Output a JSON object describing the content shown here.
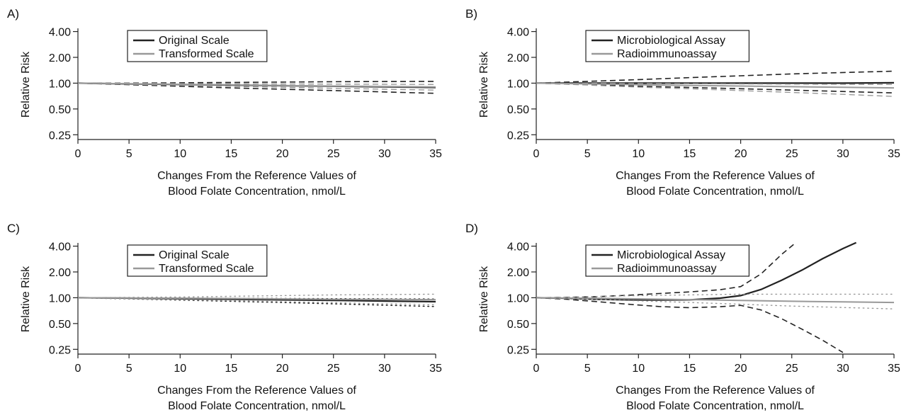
{
  "chart_data": [
    {
      "panel": "A)",
      "type": "line",
      "ylabel": "Relative Risk",
      "xlabel_lines": [
        "Changes From the Reference Values of",
        "Blood Folate Concentration, nmol/L"
      ],
      "xticks": [
        0,
        5,
        10,
        15,
        20,
        25,
        30,
        35
      ],
      "yticks": [
        0.25,
        0.5,
        1.0,
        2.0,
        4.0
      ],
      "ytick_labels": [
        "0.25",
        "0.50",
        "1.00",
        "2.00",
        "4.00"
      ],
      "xlim": [
        0,
        35
      ],
      "ylim": [
        0.22,
        4.2
      ],
      "yscale": "log",
      "legend": [
        {
          "label": "Original Scale",
          "color": "#222222"
        },
        {
          "label": "Transformed Scale",
          "color": "#999999"
        }
      ],
      "series": [
        {
          "name": "Original Scale",
          "color": "#222222",
          "dash": "solid",
          "width": 2.2,
          "x": [
            0,
            5,
            10,
            15,
            20,
            25,
            30,
            35
          ],
          "y": [
            1.0,
            0.98,
            0.965,
            0.95,
            0.935,
            0.92,
            0.905,
            0.89
          ]
        },
        {
          "color": "#222222",
          "dash": "dashed",
          "width": 1.6,
          "x": [
            0,
            5,
            10,
            15,
            20,
            25,
            30,
            35
          ],
          "y": [
            1.0,
            1.0,
            1.01,
            1.02,
            1.03,
            1.04,
            1.045,
            1.05
          ]
        },
        {
          "color": "#222222",
          "dash": "dashed",
          "width": 1.6,
          "x": [
            0,
            5,
            10,
            15,
            20,
            25,
            30,
            35
          ],
          "y": [
            1.0,
            0.96,
            0.92,
            0.88,
            0.85,
            0.82,
            0.79,
            0.76
          ]
        },
        {
          "name": "Transformed Scale",
          "color": "#999999",
          "dash": "solid",
          "width": 2.0,
          "x": [
            0,
            5,
            10,
            15,
            20,
            25,
            30,
            35
          ],
          "y": [
            1.0,
            0.985,
            0.97,
            0.955,
            0.94,
            0.925,
            0.915,
            0.905
          ]
        },
        {
          "color": "#999999",
          "dash": "dashed",
          "width": 1.4,
          "x": [
            0,
            5,
            10,
            15,
            20,
            25,
            30,
            35
          ],
          "y": [
            1.0,
            0.995,
            0.99,
            0.985,
            0.98,
            0.975,
            0.97,
            0.965
          ]
        },
        {
          "color": "#999999",
          "dash": "dashed",
          "width": 1.4,
          "x": [
            0,
            5,
            10,
            15,
            20,
            25,
            30,
            35
          ],
          "y": [
            1.0,
            0.97,
            0.945,
            0.92,
            0.895,
            0.87,
            0.85,
            0.83
          ]
        }
      ]
    },
    {
      "panel": "B)",
      "type": "line",
      "ylabel": "Relative Risk",
      "xlabel_lines": [
        "Changes From the Reference Values of",
        "Blood Folate Concentration, nmol/L"
      ],
      "xticks": [
        0,
        5,
        10,
        15,
        20,
        25,
        30,
        35
      ],
      "yticks": [
        0.25,
        0.5,
        1.0,
        2.0,
        4.0
      ],
      "ytick_labels": [
        "0.25",
        "0.50",
        "1.00",
        "2.00",
        "4.00"
      ],
      "xlim": [
        0,
        35
      ],
      "ylim": [
        0.22,
        4.2
      ],
      "yscale": "log",
      "legend": [
        {
          "label": "Microbiological Assay",
          "color": "#222222"
        },
        {
          "label": "Radioimmunoassay",
          "color": "#999999"
        }
      ],
      "series": [
        {
          "name": "Microbiological Assay",
          "color": "#222222",
          "dash": "solid",
          "width": 2.2,
          "x": [
            0,
            5,
            10,
            15,
            20,
            25,
            30,
            35
          ],
          "y": [
            1.0,
            1.0,
            1.0,
            1.0,
            1.0,
            1.0,
            1.0,
            1.01
          ]
        },
        {
          "color": "#222222",
          "dash": "dashed",
          "width": 1.6,
          "x": [
            0,
            5,
            10,
            15,
            20,
            25,
            30,
            35
          ],
          "y": [
            1.0,
            1.05,
            1.1,
            1.16,
            1.22,
            1.28,
            1.33,
            1.38
          ]
        },
        {
          "color": "#222222",
          "dash": "dashed",
          "width": 1.6,
          "x": [
            0,
            5,
            10,
            15,
            20,
            25,
            30,
            35
          ],
          "y": [
            1.0,
            0.96,
            0.92,
            0.89,
            0.86,
            0.83,
            0.8,
            0.77
          ]
        },
        {
          "name": "Radioimmunoassay",
          "color": "#999999",
          "dash": "solid",
          "width": 2.0,
          "x": [
            0,
            5,
            10,
            15,
            20,
            25,
            30,
            35
          ],
          "y": [
            1.0,
            0.98,
            0.96,
            0.94,
            0.925,
            0.91,
            0.895,
            0.88
          ]
        },
        {
          "color": "#999999",
          "dash": "dashed",
          "width": 1.4,
          "x": [
            0,
            5,
            10,
            15,
            20,
            25,
            30,
            35
          ],
          "y": [
            1.0,
            0.995,
            0.99,
            0.985,
            0.98,
            0.975,
            0.97,
            0.965
          ]
        },
        {
          "color": "#999999",
          "dash": "dashed",
          "width": 1.4,
          "x": [
            0,
            5,
            10,
            15,
            20,
            25,
            30,
            35
          ],
          "y": [
            1.0,
            0.95,
            0.9,
            0.86,
            0.82,
            0.78,
            0.74,
            0.7
          ]
        }
      ]
    },
    {
      "panel": "C)",
      "type": "line",
      "ylabel": "Relative Risk",
      "xlabel_lines": [
        "Changes From the Reference Values of",
        "Blood Folate Concentration, nmol/L"
      ],
      "xticks": [
        0,
        5,
        10,
        15,
        20,
        25,
        30,
        35
      ],
      "yticks": [
        0.25,
        0.5,
        1.0,
        2.0,
        4.0
      ],
      "ytick_labels": [
        "0.25",
        "0.50",
        "1.00",
        "2.00",
        "4.00"
      ],
      "xlim": [
        0,
        35
      ],
      "ylim": [
        0.22,
        4.2
      ],
      "yscale": "log",
      "legend": [
        {
          "label": "Original Scale",
          "color": "#222222"
        },
        {
          "label": "Transformed Scale",
          "color": "#999999"
        }
      ],
      "series": [
        {
          "name": "Original Scale",
          "color": "#222222",
          "dash": "solid",
          "width": 2.2,
          "x": [
            0,
            5,
            10,
            15,
            20,
            25,
            30,
            35
          ],
          "y": [
            1.0,
            0.99,
            0.975,
            0.96,
            0.945,
            0.93,
            0.915,
            0.9
          ]
        },
        {
          "color": "#222222",
          "dash": "dotted",
          "width": 1.6,
          "x": [
            0,
            5,
            10,
            15,
            20,
            25,
            30,
            35
          ],
          "y": [
            1.0,
            0.995,
            0.99,
            0.985,
            0.98,
            0.975,
            0.97,
            0.965
          ]
        },
        {
          "color": "#222222",
          "dash": "dotted",
          "width": 1.6,
          "x": [
            0,
            5,
            10,
            15,
            20,
            25,
            30,
            35
          ],
          "y": [
            1.0,
            0.97,
            0.94,
            0.91,
            0.88,
            0.85,
            0.82,
            0.79
          ]
        },
        {
          "name": "Transformed Scale",
          "color": "#999999",
          "dash": "solid",
          "width": 2.0,
          "x": [
            0,
            5,
            10,
            15,
            20,
            25,
            30,
            35
          ],
          "y": [
            1.0,
            0.995,
            0.99,
            0.98,
            0.97,
            0.96,
            0.955,
            0.95
          ]
        },
        {
          "color": "#999999",
          "dash": "dotted",
          "width": 1.4,
          "x": [
            0,
            5,
            10,
            15,
            20,
            25,
            30,
            35
          ],
          "y": [
            1.0,
            1.01,
            1.02,
            1.04,
            1.06,
            1.08,
            1.09,
            1.1
          ]
        },
        {
          "color": "#999999",
          "dash": "dotted",
          "width": 1.4,
          "x": [
            0,
            5,
            10,
            15,
            20,
            25,
            30,
            35
          ],
          "y": [
            1.0,
            0.975,
            0.95,
            0.925,
            0.9,
            0.875,
            0.85,
            0.83
          ]
        }
      ]
    },
    {
      "panel": "D)",
      "type": "line",
      "ylabel": "Relative Risk",
      "xlabel_lines": [
        "Changes From the Reference Values of",
        "Blood Folate Concentration, nmol/L"
      ],
      "xticks": [
        0,
        5,
        10,
        15,
        20,
        25,
        30,
        35
      ],
      "yticks": [
        0.25,
        0.5,
        1.0,
        2.0,
        4.0
      ],
      "ytick_labels": [
        "0.25",
        "0.50",
        "1.00",
        "2.00",
        "4.00"
      ],
      "xlim": [
        0,
        35
      ],
      "ylim": [
        0.22,
        4.2
      ],
      "yscale": "log",
      "legend": [
        {
          "label": "Microbiological Assay",
          "color": "#222222"
        },
        {
          "label": "Radioimmunoassay",
          "color": "#999999"
        }
      ],
      "series": [
        {
          "name": "Microbiological Assay",
          "color": "#222222",
          "dash": "solid",
          "width": 2.2,
          "x": [
            0,
            3,
            6,
            9,
            12,
            15,
            18,
            20,
            22,
            24,
            26,
            28,
            30,
            31.3
          ],
          "y": [
            1.0,
            0.985,
            0.96,
            0.945,
            0.94,
            0.945,
            0.99,
            1.06,
            1.25,
            1.6,
            2.1,
            2.85,
            3.75,
            4.4
          ]
        },
        {
          "color": "#222222",
          "dash": "dashed",
          "width": 1.6,
          "x": [
            0,
            3,
            6,
            9,
            12,
            15,
            18,
            20,
            22,
            24,
            25.3
          ],
          "y": [
            1.0,
            1.01,
            1.03,
            1.07,
            1.12,
            1.17,
            1.24,
            1.35,
            1.9,
            3.2,
            4.3
          ]
        },
        {
          "color": "#222222",
          "dash": "dashed",
          "width": 1.6,
          "x": [
            0,
            3,
            6,
            9,
            12,
            15,
            18,
            20,
            22,
            24,
            26,
            28,
            30
          ],
          "y": [
            1.0,
            0.96,
            0.9,
            0.84,
            0.79,
            0.765,
            0.785,
            0.815,
            0.72,
            0.57,
            0.43,
            0.32,
            0.23
          ]
        },
        {
          "name": "Radioimmunoassay",
          "color": "#999999",
          "dash": "solid",
          "width": 2.0,
          "x": [
            0,
            5,
            10,
            15,
            20,
            25,
            30,
            35
          ],
          "y": [
            1.0,
            0.99,
            0.97,
            0.95,
            0.93,
            0.91,
            0.895,
            0.88
          ]
        },
        {
          "color": "#999999",
          "dash": "dotted",
          "width": 1.4,
          "x": [
            0,
            5,
            10,
            15,
            20,
            25,
            30,
            35
          ],
          "y": [
            1.0,
            1.03,
            1.06,
            1.08,
            1.1,
            1.1,
            1.1,
            1.1
          ]
        },
        {
          "color": "#999999",
          "dash": "dotted",
          "width": 1.4,
          "x": [
            0,
            5,
            10,
            15,
            20,
            25,
            30,
            35
          ],
          "y": [
            1.0,
            0.96,
            0.92,
            0.88,
            0.84,
            0.8,
            0.77,
            0.74
          ]
        }
      ]
    }
  ]
}
